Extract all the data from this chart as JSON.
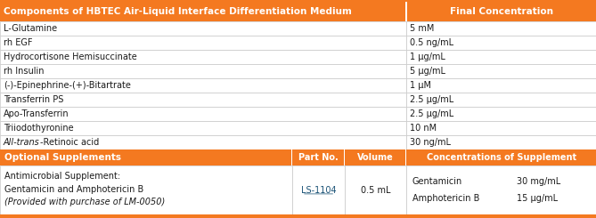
{
  "header1_text": "Components of HBTEC Air-Liquid Interface Differentiation Medium",
  "header2_text": "Final Concentration",
  "header_bg": "#F47920",
  "header_text_color": "#FFFFFF",
  "rows": [
    {
      "component": "L-Glutamine",
      "concentration": "5 mM"
    },
    {
      "component": "rh EGF",
      "concentration": "0.5 ng/mL"
    },
    {
      "component": "Hydrocortisone Hemisuccinate",
      "concentration": "1 μg/mL"
    },
    {
      "component": "rh Insulin",
      "concentration": "5 μg/mL"
    },
    {
      "component": "(-)-Epinephrine-(+)-Bitartrate",
      "concentration": "1 μM"
    },
    {
      "component": "Transferrin PS",
      "concentration": "2.5 μg/mL"
    },
    {
      "component": "Apo-Transferrin",
      "concentration": "2.5 μg/mL"
    },
    {
      "component": "Triiodothyronine",
      "concentration": "10 nM"
    },
    {
      "component": "All-trans-Retinoic acid",
      "concentration": "30 ng/mL",
      "italic_prefix": "All-trans",
      "italic_suffix": "-Retinoic acid"
    }
  ],
  "opt_header": [
    "Optional Supplements",
    "Part No.",
    "Volume",
    "Concentrations of Supplement"
  ],
  "opt_row": {
    "supplement_lines": [
      "Antimicrobial Supplement:",
      "Gentamicin and Amphotericin B",
      "(Provided with purchase of LM-0050)"
    ],
    "supplement_italic": [
      false,
      false,
      true
    ],
    "part_no": "LS-1104",
    "volume": "0.5 mL",
    "conc_col1": [
      "Gentamicin",
      "Amphotericin B"
    ],
    "conc_col2": [
      "30 mg/mL",
      "15 μg/mL"
    ]
  },
  "orange_color": "#F47920",
  "text_color": "#1a1a1a",
  "link_color": "#1a5276",
  "border_color": "#C8C8C8",
  "fig_width": 6.69,
  "fig_height": 2.45,
  "dpi": 100,
  "col_split": 0.682,
  "opt_c1": 0.49,
  "opt_c2": 0.579
}
